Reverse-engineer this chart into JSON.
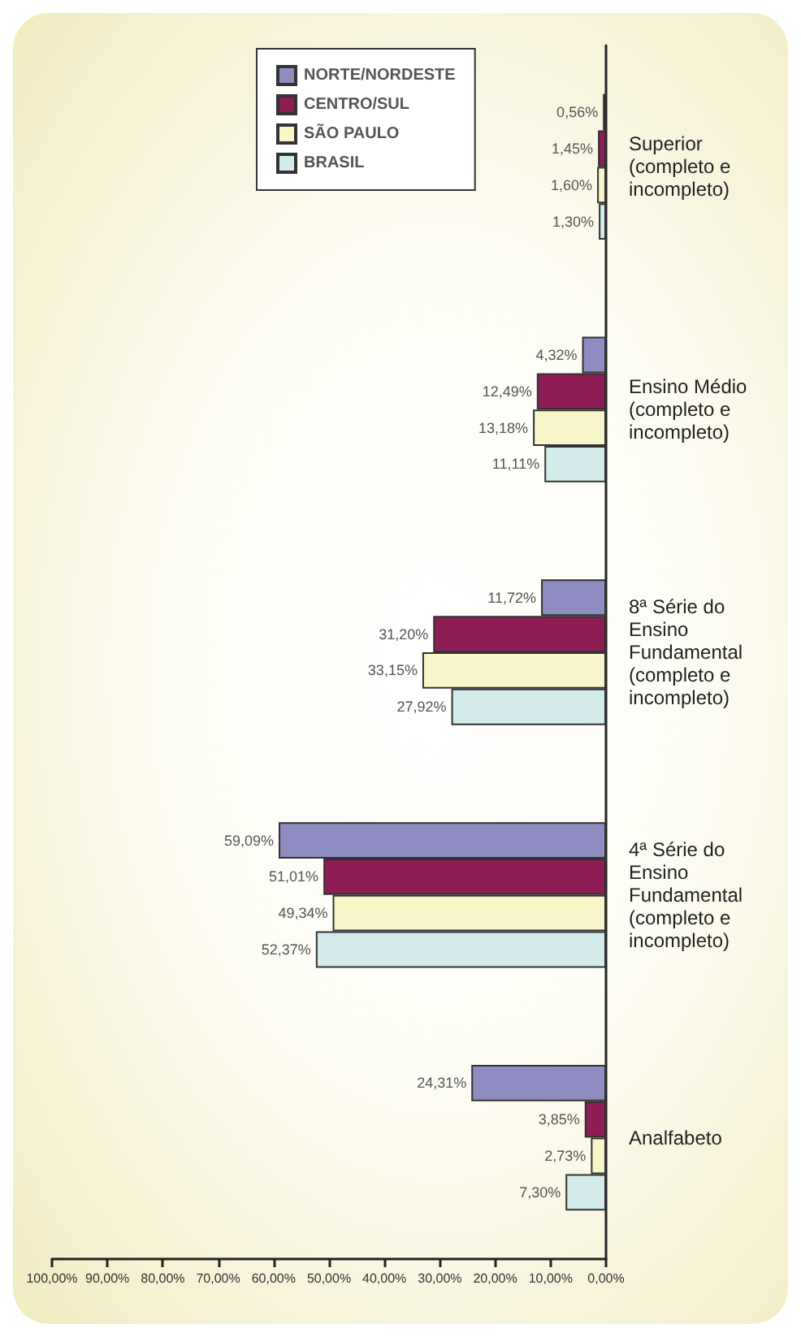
{
  "chart_data": {
    "type": "bar",
    "orientation": "horizontal",
    "categories": [
      "Superior\n(completo e\nincompleto)",
      "Ensino Médio\n(completo e\nincompleto)",
      "8ª Série do\nEnsino\nFundamental\n(completo e\nincompleto)",
      "4ª Série do\nEnsino\nFundamental\n(completo e\nincompleto)",
      "Analfabeto"
    ],
    "series": [
      {
        "name": "NORTE/NORDESTE",
        "color": "#8e8cc0",
        "values": [
          0.56,
          4.32,
          11.72,
          59.09,
          24.31
        ],
        "value_labels": [
          "0,56%",
          "4,32%",
          "11,72%",
          "59,09%",
          "24,31%"
        ]
      },
      {
        "name": "CENTRO/SUL",
        "color": "#8e1c55",
        "values": [
          1.45,
          12.49,
          31.2,
          51.01,
          3.85
        ],
        "value_labels": [
          "1,45%",
          "12,49%",
          "31,20%",
          "51,01%",
          "3,85%"
        ]
      },
      {
        "name": "SÃO PAULO",
        "color": "#f8f5c8",
        "values": [
          1.6,
          13.18,
          33.15,
          49.34,
          2.73
        ],
        "value_labels": [
          "1,60%",
          "13,18%",
          "33,15%",
          "49,34%",
          "2,73%"
        ]
      },
      {
        "name": "BRASIL",
        "color": "#d3ebea",
        "values": [
          1.3,
          11.11,
          27.92,
          52.37,
          7.3
        ],
        "value_labels": [
          "1,30%",
          "11,11%",
          "27,92%",
          "52,37%",
          "7,30%"
        ]
      }
    ],
    "xlim": [
      100,
      0
    ],
    "xticks": [
      {
        "value": 100,
        "label": "100,00%"
      },
      {
        "value": 90,
        "label": "90,00%"
      },
      {
        "value": 80,
        "label": "80,00%"
      },
      {
        "value": 70,
        "label": "70,00%"
      },
      {
        "value": 60,
        "label": "60,00%"
      },
      {
        "value": 50,
        "label": "50,00%"
      },
      {
        "value": 40,
        "label": "40,00%"
      },
      {
        "value": 30,
        "label": "30,00%"
      },
      {
        "value": 20,
        "label": "20,00%"
      },
      {
        "value": 10,
        "label": "10,00%"
      },
      {
        "value": 0,
        "label": "0,00%"
      }
    ],
    "grid": false,
    "legend": "top"
  }
}
